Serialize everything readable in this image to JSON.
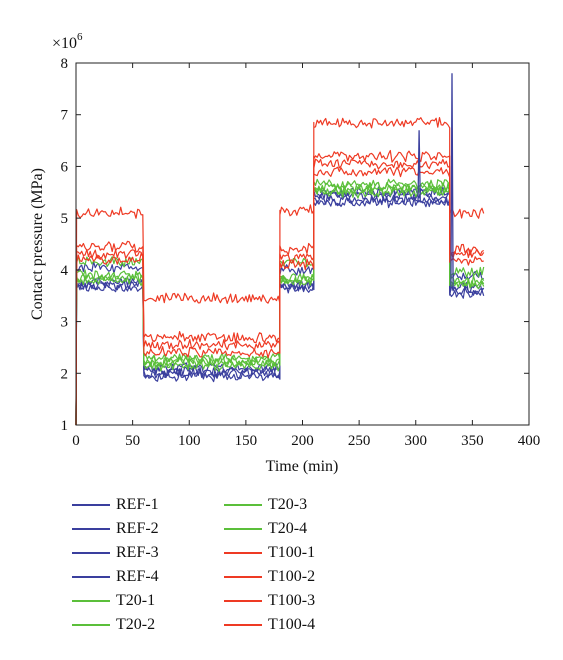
{
  "chart_data": {
    "type": "line",
    "xlabel": "Time (min)",
    "ylabel": "Contact pressure (MPa)",
    "y_multiplier": "×10",
    "y_multiplier_exp": "6",
    "xlim": [
      0,
      400
    ],
    "ylim": [
      1,
      8
    ],
    "xticks": [
      "0",
      "50",
      "100",
      "150",
      "200",
      "250",
      "300",
      "350",
      "400"
    ],
    "yticks": [
      "1",
      "2",
      "3",
      "4",
      "5",
      "6",
      "7",
      "8"
    ],
    "grid": false,
    "legend_position": "bottom-left",
    "x": [
      0,
      60,
      180,
      210,
      330,
      360
    ],
    "series": [
      {
        "name": "REF-1",
        "color": "#3a3f9e",
        "values": [
          3.7,
          2.0,
          3.7,
          5.35,
          3.6,
          3.55
        ]
      },
      {
        "name": "REF-2",
        "color": "#3a3f9e",
        "values": [
          3.65,
          1.95,
          3.65,
          5.3,
          3.55,
          3.5
        ]
      },
      {
        "name": "REF-3",
        "color": "#3a3f9e",
        "values": [
          4.05,
          2.1,
          4.0,
          5.5,
          3.9,
          3.85
        ]
      },
      {
        "name": "REF-4",
        "color": "#3a3f9e",
        "values": [
          3.75,
          2.05,
          3.7,
          5.45,
          3.65,
          3.6
        ]
      },
      {
        "name": "T20-1",
        "color": "#5bbf3a",
        "values": [
          3.8,
          2.15,
          3.8,
          5.55,
          3.7,
          3.7
        ]
      },
      {
        "name": "T20-2",
        "color": "#5bbf3a",
        "values": [
          3.9,
          2.2,
          3.85,
          5.5,
          3.75,
          3.75
        ]
      },
      {
        "name": "T20-3",
        "color": "#5bbf3a",
        "values": [
          4.15,
          2.3,
          4.15,
          5.65,
          3.95,
          3.95
        ]
      },
      {
        "name": "T20-4",
        "color": "#5bbf3a",
        "values": [
          3.85,
          2.25,
          3.8,
          5.6,
          3.8,
          3.8
        ]
      },
      {
        "name": "T100-1",
        "color": "#ee3a24",
        "values": [
          5.1,
          3.45,
          5.15,
          6.85,
          5.1,
          5.1
        ]
      },
      {
        "name": "T100-2",
        "color": "#ee3a24",
        "values": [
          4.45,
          2.7,
          4.4,
          6.2,
          4.4,
          4.4
        ]
      },
      {
        "name": "T100-3",
        "color": "#ee3a24",
        "values": [
          4.3,
          2.55,
          4.25,
          6.05,
          4.3,
          4.3
        ]
      },
      {
        "name": "T100-4",
        "color": "#ee3a24",
        "values": [
          4.2,
          2.4,
          4.1,
          5.9,
          4.15,
          4.15
        ]
      }
    ],
    "annotations": [
      {
        "series": "REF-1",
        "type": "spike",
        "x": 332,
        "y": 7.8
      },
      {
        "series": "REF-2",
        "type": "spike",
        "x": 303,
        "y": 6.7
      }
    ]
  }
}
